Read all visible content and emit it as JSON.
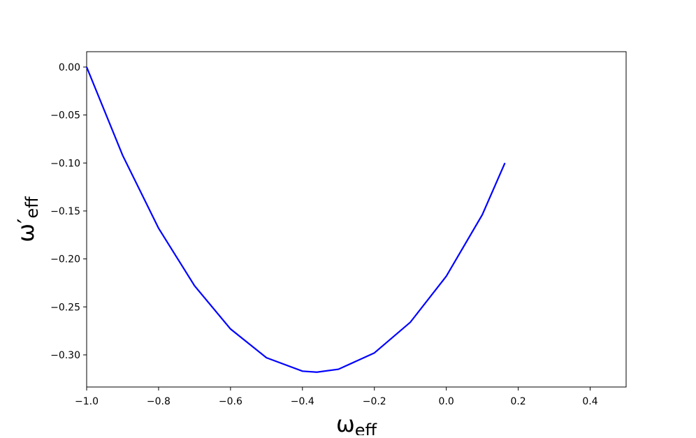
{
  "chart_data": {
    "type": "line",
    "xlabel": {
      "main": "ω",
      "sub": "eff"
    },
    "ylabel": {
      "main": "ω′",
      "sub": "eff"
    },
    "x": [
      -1.0,
      -0.9,
      -0.8,
      -0.7,
      -0.6,
      -0.5,
      -0.4,
      -0.36,
      -0.3,
      -0.2,
      -0.1,
      0.0,
      0.1,
      0.163
    ],
    "series": [
      {
        "color": "#0000ff",
        "values": [
          0.0,
          -0.092,
          -0.168,
          -0.228,
          -0.273,
          -0.303,
          -0.317,
          -0.318,
          -0.315,
          -0.298,
          -0.266,
          -0.218,
          -0.154,
          -0.1
        ]
      }
    ],
    "xlim": [
      -1.0,
      0.5
    ],
    "ylim": [
      -0.3335,
      0.016
    ],
    "xticks": [
      {
        "value": -1.0,
        "label": "−1.0"
      },
      {
        "value": -0.8,
        "label": "−0.8"
      },
      {
        "value": -0.6,
        "label": "−0.6"
      },
      {
        "value": -0.4,
        "label": "−0.4"
      },
      {
        "value": -0.2,
        "label": "−0.2"
      },
      {
        "value": 0.0,
        "label": "0.0"
      },
      {
        "value": 0.2,
        "label": "0.2"
      },
      {
        "value": 0.4,
        "label": "0.4"
      }
    ],
    "yticks": [
      {
        "value": 0.0,
        "label": "0.00"
      },
      {
        "value": -0.05,
        "label": "−0.05"
      },
      {
        "value": -0.1,
        "label": "−0.10"
      },
      {
        "value": -0.15,
        "label": "−0.15"
      },
      {
        "value": -0.2,
        "label": "−0.20"
      },
      {
        "value": -0.25,
        "label": "−0.25"
      },
      {
        "value": -0.3,
        "label": "−0.30"
      }
    ],
    "grid": false
  }
}
